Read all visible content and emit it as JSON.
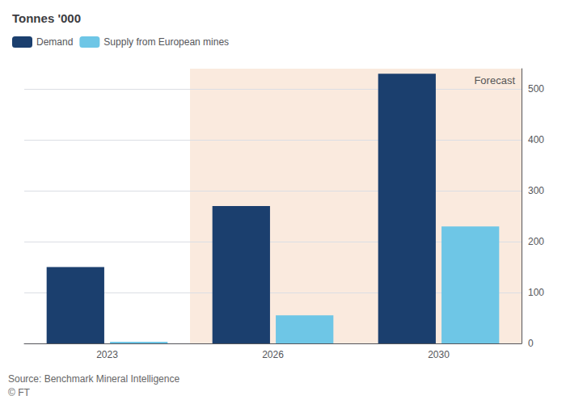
{
  "chart_data": {
    "type": "bar",
    "title": "Tonnes '000",
    "categories": [
      "2023",
      "2026",
      "2030"
    ],
    "series": [
      {
        "name": "Demand",
        "color": "#1b3f6e",
        "values": [
          150,
          270,
          530
        ]
      },
      {
        "name": "Supply from European mines",
        "color": "#6ec6e6",
        "values": [
          3,
          55,
          230
        ]
      }
    ],
    "ylim": [
      0,
      540
    ],
    "yticks": [
      0,
      100,
      200,
      300,
      400,
      500
    ],
    "grid": true,
    "legend": "upper left",
    "annotations": [
      {
        "text": "Forecast",
        "x": [
          "2026",
          "2030"
        ],
        "color": "#faeade"
      },
      {
        "text": "Source: Benchmark Mineral Intelligence"
      },
      {
        "text": "© FT"
      }
    ]
  }
}
